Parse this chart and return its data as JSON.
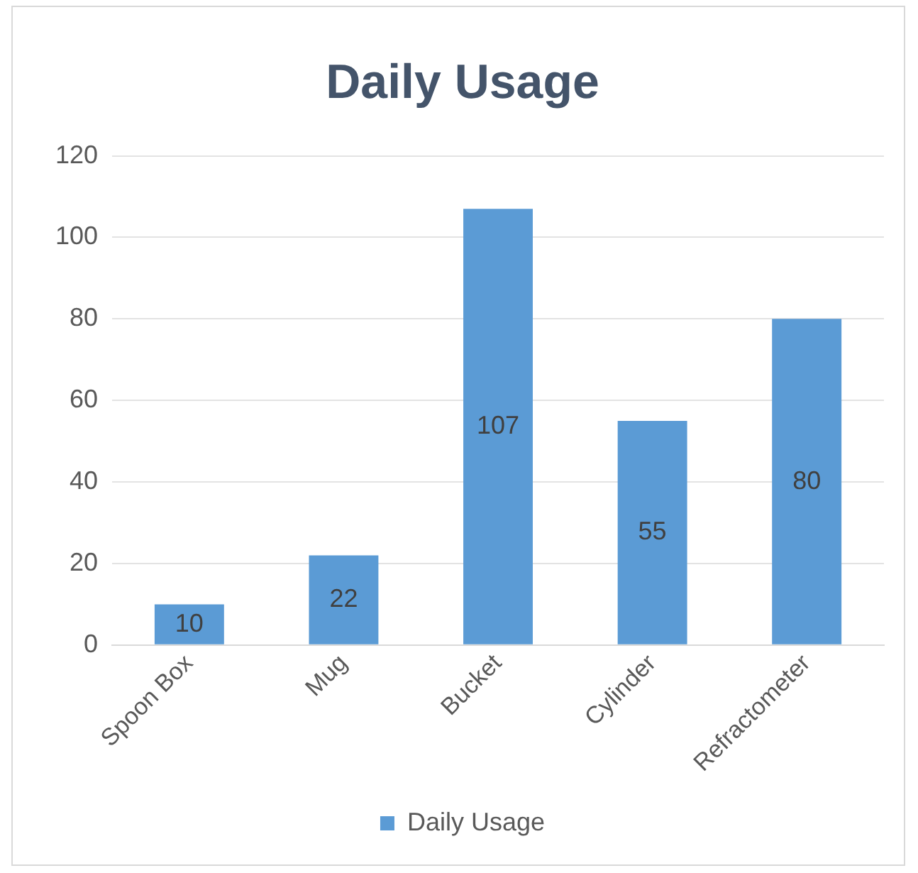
{
  "chart_data": {
    "type": "bar",
    "title": "Daily Usage",
    "categories": [
      "Spoon Box",
      "Mug",
      "Bucket",
      "Cylinder",
      "Refractometer"
    ],
    "series": [
      {
        "name": "Daily Usage",
        "color": "#5b9bd5",
        "values": [
          10,
          22,
          107,
          55,
          80
        ]
      }
    ],
    "ylim": [
      0,
      120
    ],
    "yticks": [
      0,
      20,
      40,
      60,
      80,
      100,
      120
    ],
    "grid": "y",
    "legend": "bottom",
    "data_labels": true
  }
}
